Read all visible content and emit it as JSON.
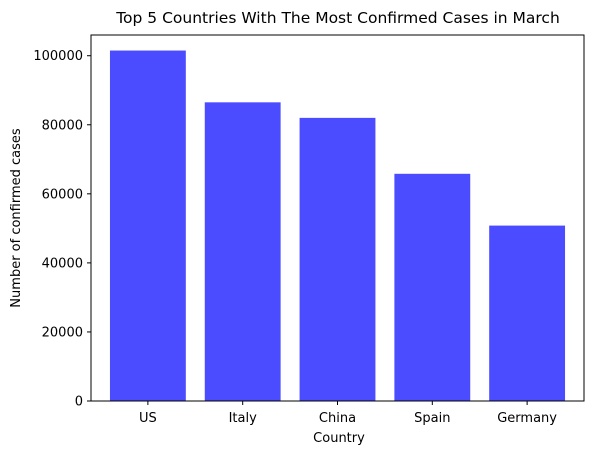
{
  "chart_data": {
    "type": "bar",
    "title": "Top 5 Countries With The Most Confirmed Cases in March",
    "xlabel": "Country",
    "ylabel": "Number of confirmed cases",
    "categories": [
      "US",
      "Italy",
      "China",
      "Spain",
      "Germany"
    ],
    "values": [
      101500,
      86500,
      82000,
      65800,
      50800
    ],
    "ylim": [
      0,
      106000
    ],
    "yticks": [
      0,
      20000,
      40000,
      60000,
      80000,
      100000
    ],
    "ytick_labels": [
      "0",
      "20000",
      "40000",
      "60000",
      "80000",
      "100000"
    ],
    "bar_color": "#4b4bff",
    "grid": false,
    "legend": "none"
  }
}
